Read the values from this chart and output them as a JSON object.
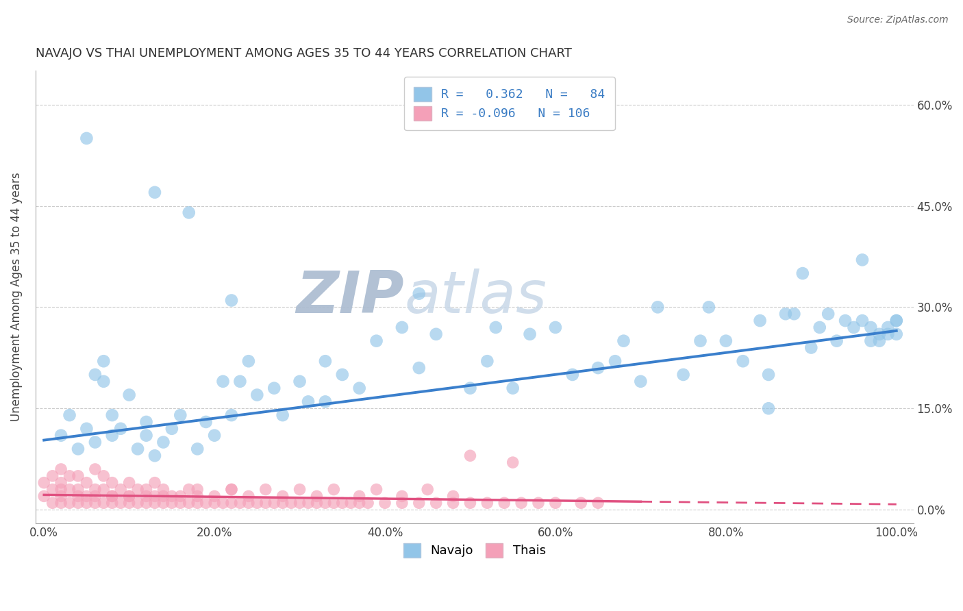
{
  "title": "NAVAJO VS THAI UNEMPLOYMENT AMONG AGES 35 TO 44 YEARS CORRELATION CHART",
  "source_text": "Source: ZipAtlas.com",
  "ylabel": "Unemployment Among Ages 35 to 44 years",
  "xlim": [
    -0.01,
    1.02
  ],
  "ylim": [
    -0.02,
    0.65
  ],
  "xticks": [
    0.0,
    0.2,
    0.4,
    0.6,
    0.8,
    1.0
  ],
  "xticklabels": [
    "0.0%",
    "20.0%",
    "40.0%",
    "60.0%",
    "80.0%",
    "100.0%"
  ],
  "yticks": [
    0.0,
    0.15,
    0.3,
    0.45,
    0.6
  ],
  "yticklabels": [
    "0.0%",
    "15.0%",
    "30.0%",
    "45.0%",
    "60.0%"
  ],
  "navajo_R": 0.362,
  "navajo_N": 84,
  "thais_R": -0.096,
  "thais_N": 106,
  "navajo_color": "#92c5e8",
  "thais_color": "#f4a0b8",
  "navajo_line_color": "#3a7fcc",
  "thais_line_color": "#e05080",
  "watermark_zip": "ZIP",
  "watermark_atlas": "atlas",
  "watermark_color": "#ccd8e8",
  "background_color": "#ffffff",
  "navajo_x": [
    0.02,
    0.03,
    0.04,
    0.05,
    0.06,
    0.06,
    0.07,
    0.08,
    0.08,
    0.09,
    0.1,
    0.11,
    0.12,
    0.12,
    0.13,
    0.14,
    0.15,
    0.16,
    0.17,
    0.18,
    0.19,
    0.2,
    0.21,
    0.22,
    0.23,
    0.24,
    0.25,
    0.27,
    0.28,
    0.3,
    0.31,
    0.33,
    0.35,
    0.37,
    0.39,
    0.42,
    0.44,
    0.46,
    0.5,
    0.52,
    0.55,
    0.57,
    0.6,
    0.62,
    0.65,
    0.67,
    0.7,
    0.72,
    0.75,
    0.77,
    0.8,
    0.82,
    0.84,
    0.85,
    0.87,
    0.88,
    0.9,
    0.91,
    0.92,
    0.93,
    0.94,
    0.95,
    0.96,
    0.97,
    0.97,
    0.98,
    0.98,
    0.99,
    0.99,
    1.0,
    1.0,
    0.05,
    0.13,
    0.33,
    0.53,
    0.68,
    0.78,
    0.89,
    0.96,
    1.0,
    0.07,
    0.22,
    0.44,
    0.85
  ],
  "navajo_y": [
    0.11,
    0.14,
    0.09,
    0.12,
    0.1,
    0.2,
    0.22,
    0.14,
    0.11,
    0.12,
    0.17,
    0.09,
    0.13,
    0.11,
    0.08,
    0.1,
    0.12,
    0.14,
    0.44,
    0.09,
    0.13,
    0.11,
    0.19,
    0.14,
    0.19,
    0.22,
    0.17,
    0.18,
    0.14,
    0.19,
    0.16,
    0.22,
    0.2,
    0.18,
    0.25,
    0.27,
    0.21,
    0.26,
    0.18,
    0.22,
    0.18,
    0.26,
    0.27,
    0.2,
    0.21,
    0.22,
    0.19,
    0.3,
    0.2,
    0.25,
    0.25,
    0.22,
    0.28,
    0.2,
    0.29,
    0.29,
    0.24,
    0.27,
    0.29,
    0.25,
    0.28,
    0.27,
    0.28,
    0.25,
    0.27,
    0.26,
    0.25,
    0.26,
    0.27,
    0.26,
    0.28,
    0.55,
    0.47,
    0.16,
    0.27,
    0.25,
    0.3,
    0.35,
    0.37,
    0.28,
    0.19,
    0.31,
    0.32,
    0.15
  ],
  "thais_x": [
    0.0,
    0.0,
    0.01,
    0.01,
    0.01,
    0.02,
    0.02,
    0.02,
    0.02,
    0.03,
    0.03,
    0.03,
    0.04,
    0.04,
    0.04,
    0.05,
    0.05,
    0.05,
    0.06,
    0.06,
    0.06,
    0.07,
    0.07,
    0.07,
    0.08,
    0.08,
    0.08,
    0.09,
    0.09,
    0.1,
    0.1,
    0.1,
    0.11,
    0.11,
    0.12,
    0.12,
    0.13,
    0.13,
    0.13,
    0.14,
    0.14,
    0.15,
    0.15,
    0.16,
    0.17,
    0.17,
    0.18,
    0.18,
    0.19,
    0.2,
    0.21,
    0.22,
    0.22,
    0.23,
    0.24,
    0.25,
    0.26,
    0.27,
    0.28,
    0.29,
    0.3,
    0.31,
    0.32,
    0.33,
    0.34,
    0.35,
    0.36,
    0.37,
    0.38,
    0.4,
    0.42,
    0.44,
    0.46,
    0.48,
    0.5,
    0.5,
    0.52,
    0.54,
    0.55,
    0.56,
    0.58,
    0.6,
    0.63,
    0.65,
    0.02,
    0.04,
    0.06,
    0.08,
    0.1,
    0.12,
    0.14,
    0.16,
    0.18,
    0.2,
    0.22,
    0.24,
    0.26,
    0.28,
    0.3,
    0.32,
    0.34,
    0.37,
    0.39,
    0.42,
    0.45,
    0.48
  ],
  "thais_y": [
    0.02,
    0.04,
    0.01,
    0.03,
    0.05,
    0.01,
    0.02,
    0.04,
    0.06,
    0.01,
    0.03,
    0.05,
    0.01,
    0.03,
    0.05,
    0.01,
    0.02,
    0.04,
    0.01,
    0.02,
    0.06,
    0.01,
    0.03,
    0.05,
    0.01,
    0.02,
    0.04,
    0.01,
    0.03,
    0.01,
    0.02,
    0.04,
    0.01,
    0.03,
    0.01,
    0.02,
    0.01,
    0.02,
    0.04,
    0.01,
    0.03,
    0.01,
    0.02,
    0.01,
    0.01,
    0.03,
    0.01,
    0.02,
    0.01,
    0.01,
    0.01,
    0.01,
    0.03,
    0.01,
    0.01,
    0.01,
    0.01,
    0.01,
    0.01,
    0.01,
    0.01,
    0.01,
    0.01,
    0.01,
    0.01,
    0.01,
    0.01,
    0.01,
    0.01,
    0.01,
    0.01,
    0.01,
    0.01,
    0.01,
    0.01,
    0.08,
    0.01,
    0.01,
    0.07,
    0.01,
    0.01,
    0.01,
    0.01,
    0.01,
    0.03,
    0.02,
    0.03,
    0.02,
    0.02,
    0.03,
    0.02,
    0.02,
    0.03,
    0.02,
    0.03,
    0.02,
    0.03,
    0.02,
    0.03,
    0.02,
    0.03,
    0.02,
    0.03,
    0.02,
    0.03,
    0.02
  ],
  "navajo_line_x0": 0.0,
  "navajo_line_x1": 1.0,
  "navajo_line_y0": 0.103,
  "navajo_line_y1": 0.265,
  "thais_line_x0": 0.0,
  "thais_line_x1": 0.7,
  "thais_line_xdash0": 0.7,
  "thais_line_xdash1": 1.0,
  "thais_line_y0": 0.022,
  "thais_line_y1": 0.012,
  "thais_line_ydash0": 0.012,
  "thais_line_ydash1": 0.008
}
